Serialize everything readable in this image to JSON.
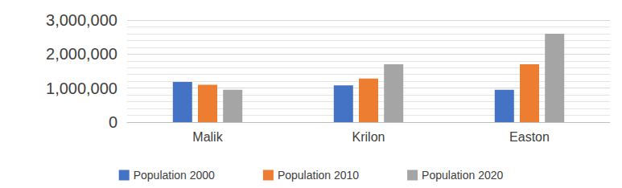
{
  "chart_data": {
    "type": "bar",
    "categories": [
      "Malik",
      "Krilon",
      "Easton"
    ],
    "series": [
      {
        "name": "Population 2000",
        "color": "#4472c4",
        "values": [
          1180000,
          1080000,
          950000
        ]
      },
      {
        "name": "Population 2010",
        "color": "#ed7d31",
        "values": [
          1100000,
          1280000,
          1700000
        ]
      },
      {
        "name": "Population 2020",
        "color": "#a5a5a5",
        "values": [
          950000,
          1700000,
          2600000
        ]
      }
    ],
    "ylim": [
      0,
      3000000
    ],
    "yticks": [
      0,
      {
        "value": 1000000,
        "label": "1,000,000"
      },
      {
        "value": 2000000,
        "label": "2,000,000"
      },
      {
        "value": 3000000,
        "label": "3,000,000"
      }
    ],
    "grid": true,
    "legend": "bottom"
  }
}
